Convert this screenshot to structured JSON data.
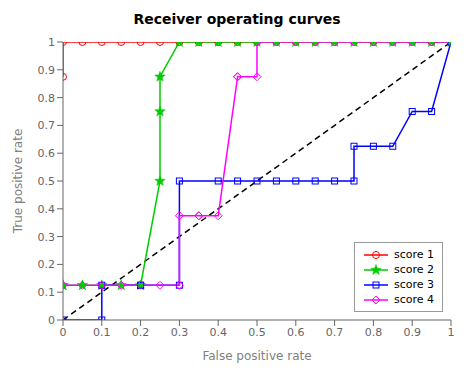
{
  "chart_data": {
    "type": "line",
    "title": "Receiver operating curves",
    "xlabel": "False positive rate",
    "ylabel": "True positive rate",
    "xlim": [
      0,
      1
    ],
    "ylim": [
      0,
      1
    ],
    "xticks": [
      0,
      0.1,
      0.2,
      0.3,
      0.4,
      0.5,
      0.6,
      0.7,
      0.8,
      0.9,
      1
    ],
    "yticks": [
      0,
      0.1,
      0.2,
      0.3,
      0.4,
      0.5,
      0.6,
      0.7,
      0.8,
      0.9,
      1
    ],
    "grid": false,
    "legend": "lower right",
    "series": [
      {
        "color": "#000000",
        "line_style": "dashed",
        "x": [
          0,
          1
        ],
        "values": [
          0,
          1
        ]
      },
      {
        "name": "score 1",
        "color": "#ff0000",
        "marker": "circle",
        "line_style": "solid",
        "x": [
          0,
          0,
          0.05,
          0.1,
          0.15,
          0.2,
          0.25,
          0.3,
          0.35,
          0.4,
          0.45,
          0.5,
          0.55,
          0.6,
          0.65,
          0.7,
          0.75,
          0.8,
          0.85,
          0.9,
          0.95,
          1
        ],
        "values": [
          0.875,
          1,
          1,
          1,
          1,
          1,
          1,
          1,
          1,
          1,
          1,
          1,
          1,
          1,
          1,
          1,
          1,
          1,
          1,
          1,
          1,
          1
        ]
      },
      {
        "name": "score 2",
        "color": "#00cc00",
        "marker": "star",
        "line_style": "solid",
        "x": [
          0,
          0,
          0.05,
          0.1,
          0.15,
          0.2,
          0.25,
          0.25,
          0.25,
          0.3,
          0.35,
          0.4,
          0.45,
          0.5,
          0.55,
          0.6,
          0.65,
          0.7,
          0.75,
          0.8,
          0.85,
          0.9,
          0.95,
          1
        ],
        "values": [
          0.125,
          0.125,
          0.125,
          0.125,
          0.125,
          0.125,
          0.5,
          0.75,
          0.875,
          1,
          1,
          1,
          1,
          1,
          1,
          1,
          1,
          1,
          1,
          1,
          1,
          1,
          1,
          1
        ]
      },
      {
        "name": "score 3",
        "color": "#0000ff",
        "marker": "square",
        "line_style": "solid",
        "x": [
          0,
          0.1,
          0.1,
          0.2,
          0.2,
          0.3,
          0.3,
          0.4,
          0.45,
          0.5,
          0.55,
          0.6,
          0.65,
          0.7,
          0.75,
          0.75,
          0.8,
          0.85,
          0.9,
          0.95,
          1
        ],
        "values": [
          0,
          0,
          0.125,
          0.125,
          0.125,
          0.125,
          0.5,
          0.5,
          0.5,
          0.5,
          0.5,
          0.5,
          0.5,
          0.5,
          0.5,
          0.625,
          0.625,
          0.625,
          0.75,
          0.75,
          1
        ]
      },
      {
        "name": "score 4",
        "color": "#ff00ff",
        "marker": "diamond",
        "line_style": "solid",
        "x": [
          0,
          0.05,
          0.1,
          0.15,
          0.2,
          0.25,
          0.3,
          0.3,
          0.35,
          0.35,
          0.4,
          0.45,
          0.45,
          0.5,
          0.5,
          0.55,
          0.6,
          0.65,
          0.7,
          0.75,
          0.8,
          0.85,
          0.9,
          0.95,
          1
        ],
        "values": [
          0.125,
          0.125,
          0.125,
          0.125,
          0.125,
          0.125,
          0.125,
          0.375,
          0.375,
          0.375,
          0.375,
          0.875,
          0.875,
          0.875,
          1,
          1,
          1,
          1,
          1,
          1,
          1,
          1,
          1,
          1,
          1
        ]
      }
    ]
  }
}
